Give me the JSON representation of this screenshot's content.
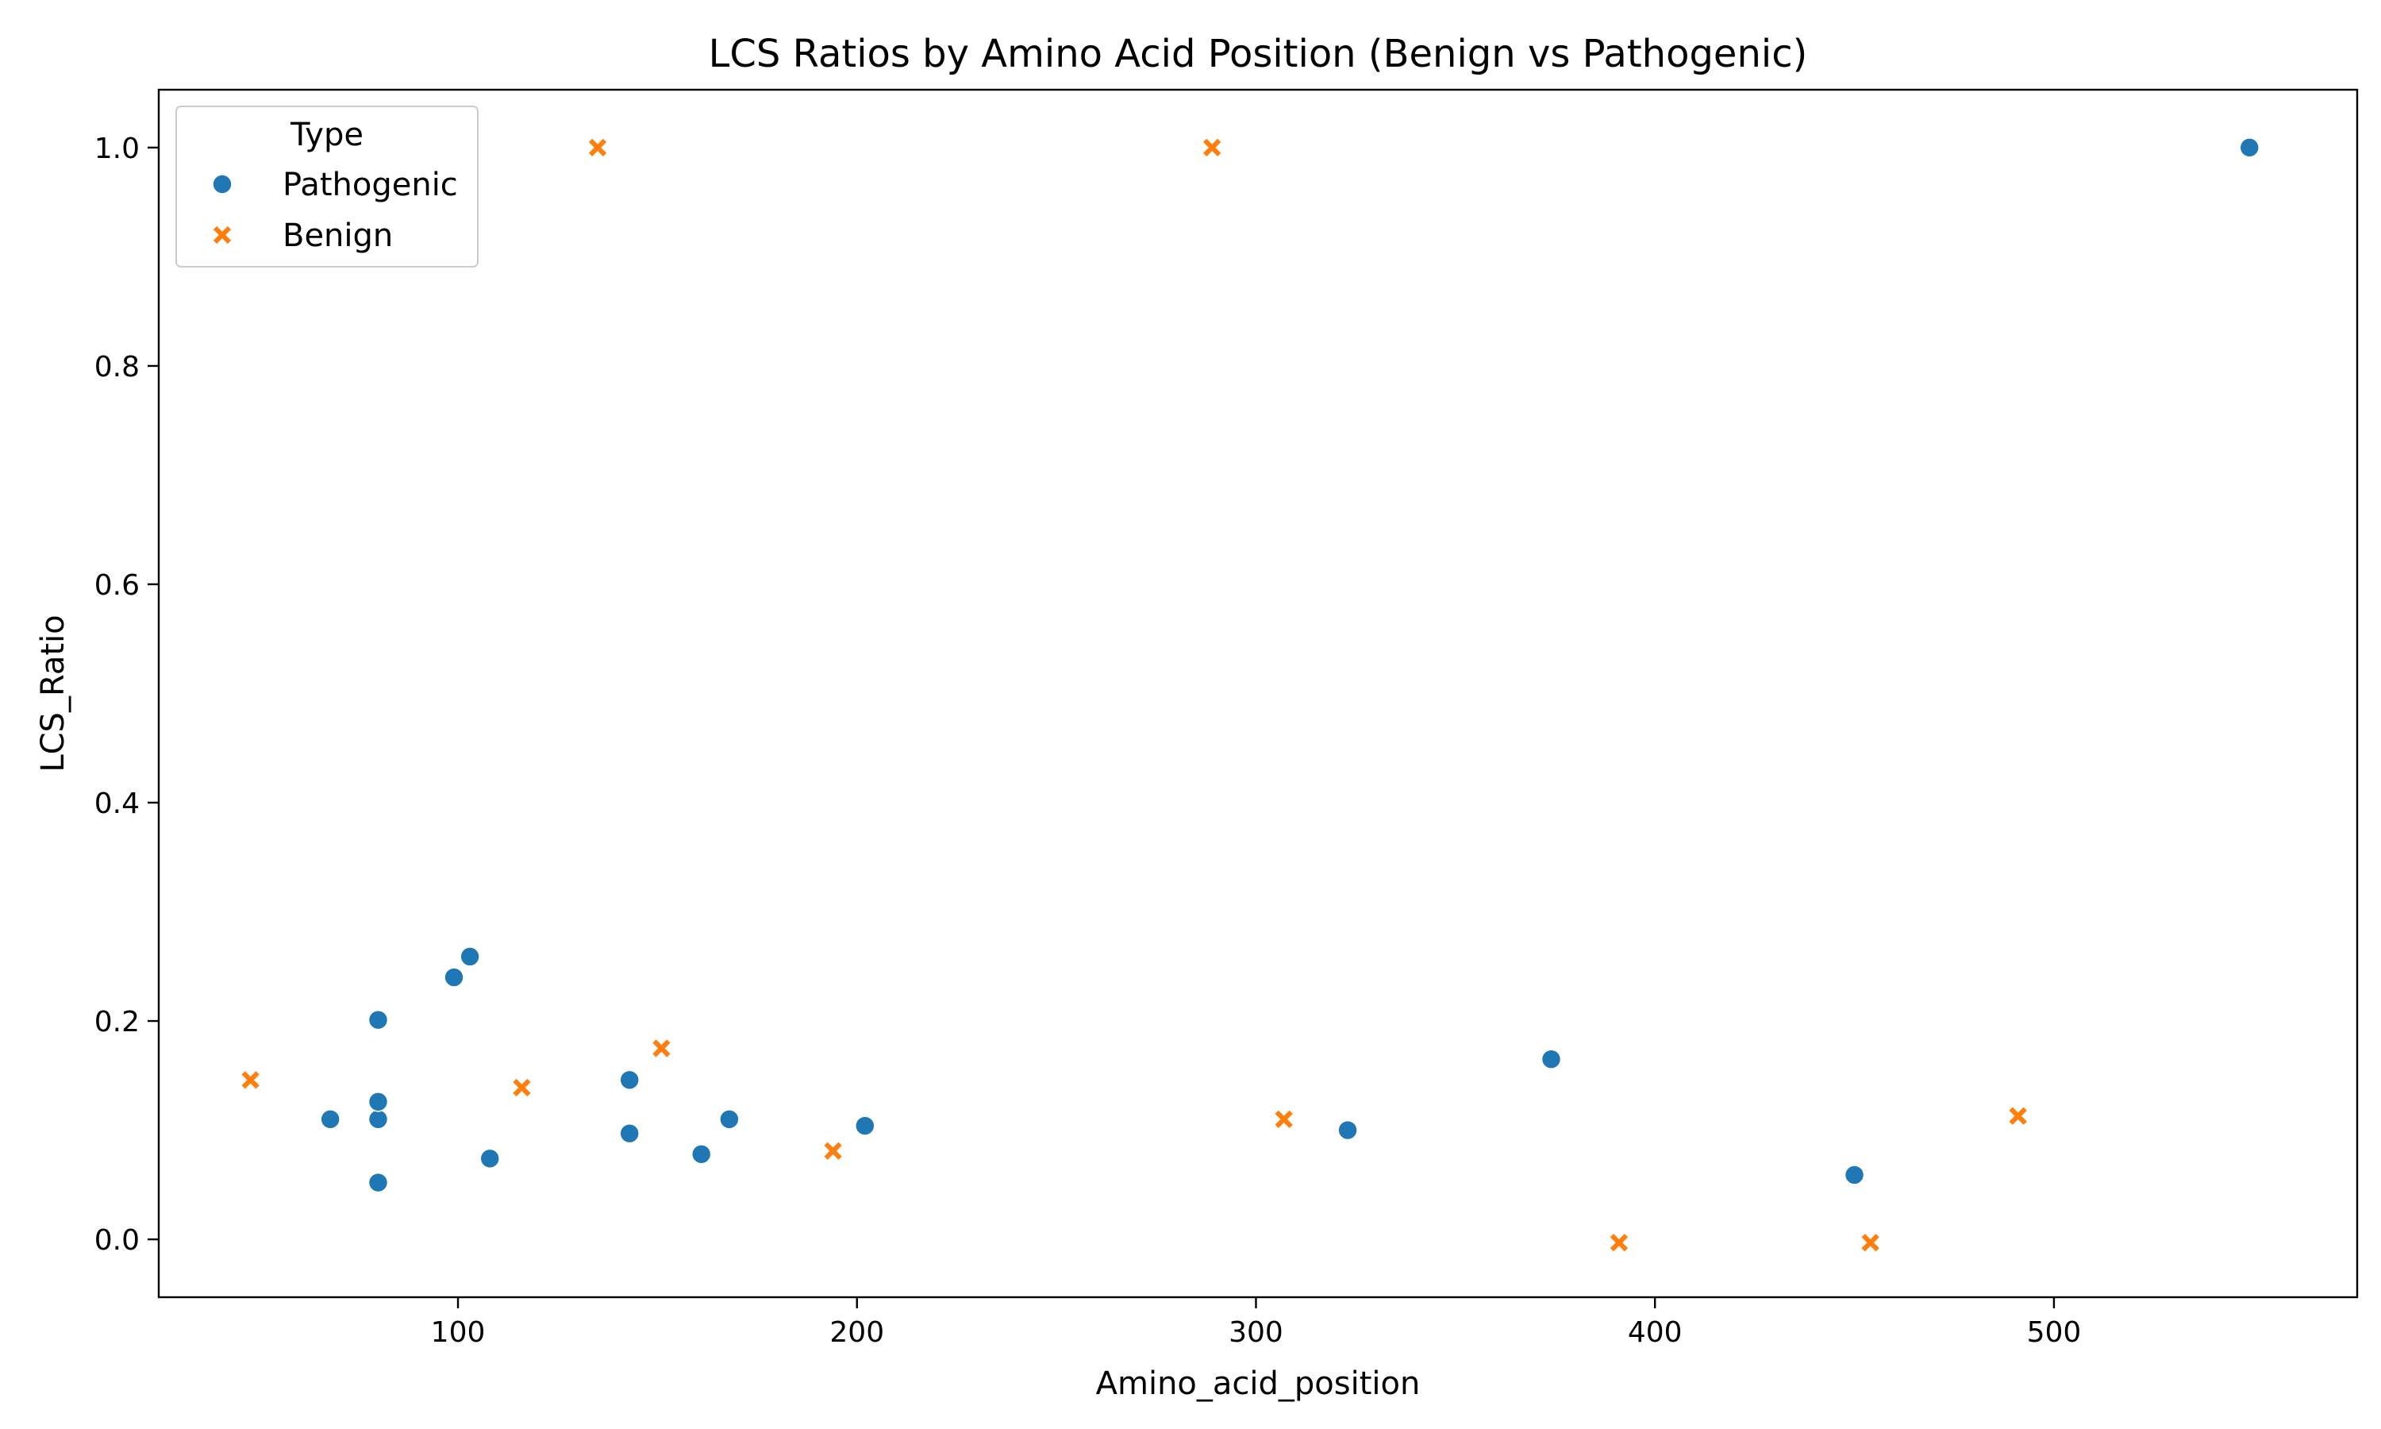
{
  "chart_data": {
    "type": "scatter",
    "title": "LCS Ratios by Amino Acid Position (Benign vs Pathogenic)",
    "xlabel": "Amino_acid_position",
    "ylabel": "LCS_Ratio",
    "xlim": [
      25,
      576
    ],
    "ylim": [
      -0.053,
      1.053
    ],
    "xticks": [
      100,
      200,
      300,
      400,
      500
    ],
    "yticks": [
      0.0,
      0.2,
      0.4,
      0.6,
      0.8,
      1.0
    ],
    "xtick_labels": [
      "100",
      "200",
      "300",
      "400",
      "500"
    ],
    "ytick_labels": [
      "0.0",
      "0.2",
      "0.4",
      "0.6",
      "0.8",
      "1.0"
    ],
    "grid": false,
    "legend": {
      "title": "Type",
      "placement": "upper-left"
    },
    "series": [
      {
        "name": "Pathogenic",
        "marker": "circle",
        "color": "#1f77b4",
        "points": [
          {
            "x": 68,
            "y": 0.11
          },
          {
            "x": 80,
            "y": 0.052
          },
          {
            "x": 80,
            "y": 0.11
          },
          {
            "x": 80,
            "y": 0.126
          },
          {
            "x": 80,
            "y": 0.201
          },
          {
            "x": 99,
            "y": 0.24
          },
          {
            "x": 103,
            "y": 0.259
          },
          {
            "x": 108,
            "y": 0.074
          },
          {
            "x": 143,
            "y": 0.097
          },
          {
            "x": 143,
            "y": 0.146
          },
          {
            "x": 161,
            "y": 0.078
          },
          {
            "x": 168,
            "y": 0.11
          },
          {
            "x": 202,
            "y": 0.104
          },
          {
            "x": 323,
            "y": 0.1
          },
          {
            "x": 374,
            "y": 0.165
          },
          {
            "x": 450,
            "y": 0.059
          },
          {
            "x": 549,
            "y": 1.0
          }
        ]
      },
      {
        "name": "Benign",
        "marker": "x",
        "color": "#ff7f0e",
        "points": [
          {
            "x": 48,
            "y": 0.146
          },
          {
            "x": 116,
            "y": 0.139
          },
          {
            "x": 135,
            "y": 1.0
          },
          {
            "x": 151,
            "y": 0.175
          },
          {
            "x": 194,
            "y": 0.081
          },
          {
            "x": 289,
            "y": 1.0
          },
          {
            "x": 307,
            "y": 0.11
          },
          {
            "x": 391,
            "y": -0.003
          },
          {
            "x": 454,
            "y": -0.003
          },
          {
            "x": 491,
            "y": 0.113
          }
        ]
      }
    ]
  }
}
